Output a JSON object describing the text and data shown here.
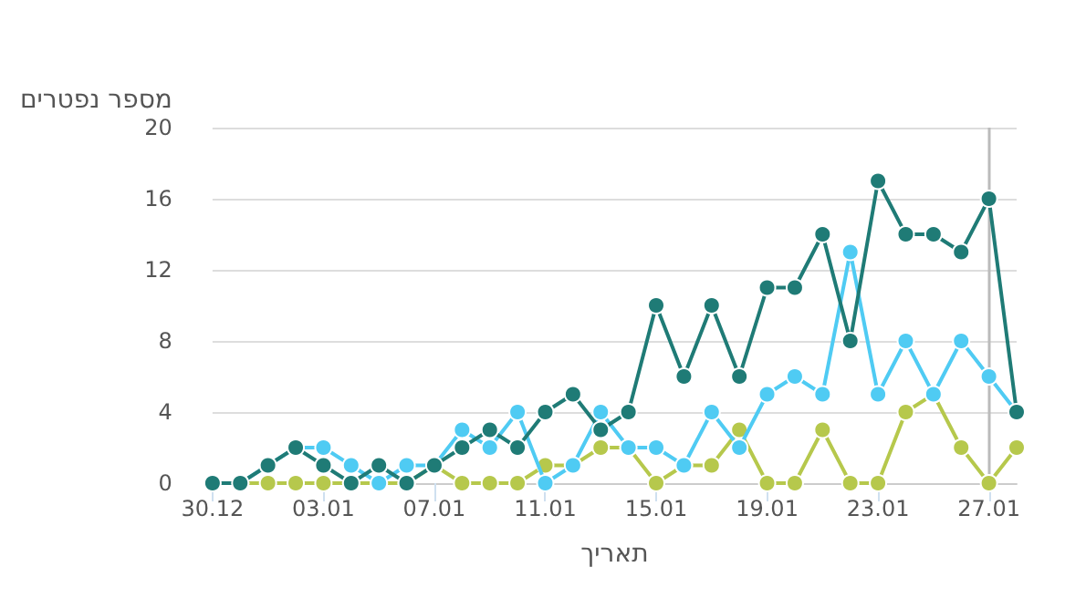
{
  "chart_data": {
    "type": "line",
    "ylabel": "מספר נפטרים",
    "xlabel": "תאריך",
    "categories": [
      "30.12",
      null,
      null,
      null,
      "03.01",
      null,
      null,
      null,
      "07.01",
      null,
      null,
      null,
      "11.01",
      null,
      null,
      null,
      "15.01",
      null,
      null,
      null,
      "19.01",
      null,
      null,
      null,
      "23.01",
      null,
      null,
      null,
      "27.01",
      null
    ],
    "series": [
      {
        "color": "#1f7b76",
        "values": [
          0,
          0,
          1,
          2,
          1,
          0,
          1,
          0,
          1,
          2,
          3,
          2,
          4,
          5,
          3,
          4,
          10,
          6,
          10,
          6,
          11,
          11,
          14,
          8,
          17,
          14,
          14,
          13,
          16,
          4
        ]
      },
      {
        "color": "#4fcbf3",
        "values": [
          0,
          0,
          1,
          2,
          2,
          1,
          0,
          1,
          1,
          3,
          2,
          4,
          0,
          1,
          4,
          2,
          2,
          1,
          4,
          2,
          5,
          6,
          5,
          13,
          5,
          8,
          5,
          8,
          6,
          4
        ]
      },
      {
        "color": "#b6c84c",
        "values": [
          0,
          0,
          0,
          0,
          0,
          0,
          0,
          0,
          1,
          0,
          0,
          0,
          1,
          1,
          2,
          2,
          0,
          1,
          1,
          3,
          0,
          0,
          3,
          0,
          0,
          4,
          5,
          2,
          0,
          2
        ]
      }
    ],
    "ylim": [
      0,
      20
    ],
    "yticks": [
      0,
      4,
      8,
      12,
      16,
      20
    ],
    "grid": "y",
    "marker": "circle",
    "line_style": "solid",
    "ref_lines": [
      {
        "axis": "x",
        "value": "27.01",
        "color": "#bbbbbb"
      }
    ]
  }
}
